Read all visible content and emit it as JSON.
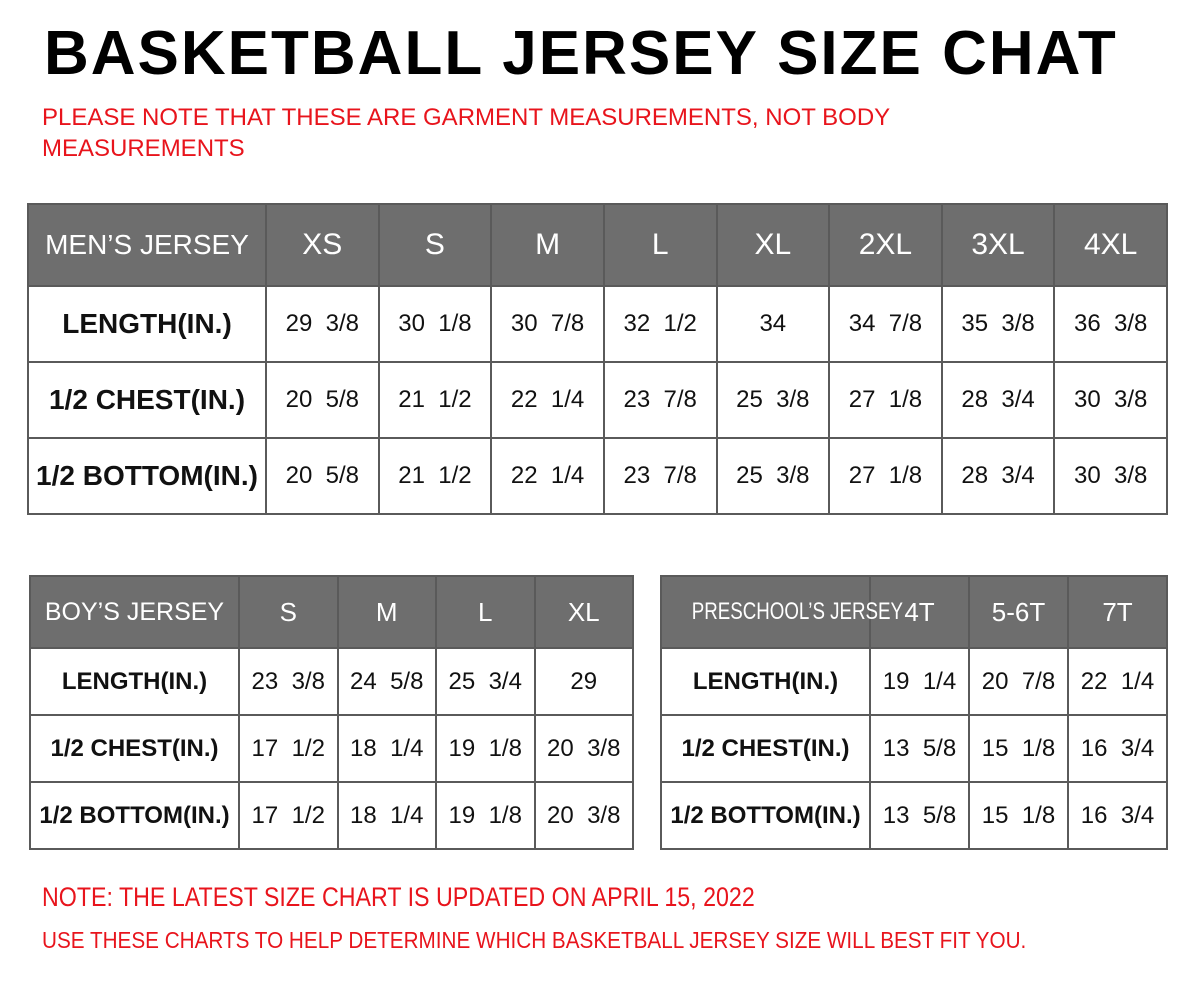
{
  "title": "BASKETBALL JERSEY SIZE CHAT",
  "notice_line1": "PLEASE NOTE THAT THESE ARE GARMENT MEASUREMENTS, NOT BODY",
  "notice_line2": "MEASUREMENTS",
  "footer_note1": "NOTE: THE LATEST SIZE CHART IS UPDATED ON APRIL 15, 2022",
  "footer_note2": "USE THESE CHARTS TO HELP DETERMINE WHICH  BASKETBALL JERSEY  SIZE WILL BEST FIT YOU.",
  "colors": {
    "header_bg": "#6e6e6e",
    "note_red": "#e8141c"
  },
  "tables": {
    "men": {
      "header": [
        "MEN’S JERSEY",
        "XS",
        "S",
        "M",
        "L",
        "XL",
        "2XL",
        "3XL",
        "4XL"
      ],
      "rows": [
        {
          "label": "LENGTH(IN.)",
          "values": [
            "29  3/8",
            "30  1/8",
            "30  7/8",
            "32  1/2",
            "34",
            "34  7/8",
            "35  3/8",
            "36  3/8"
          ]
        },
        {
          "label": "1/2  CHEST(IN.)",
          "values": [
            "20  5/8",
            "21  1/2",
            "22  1/4",
            "23  7/8",
            "25  3/8",
            "27  1/8",
            "28  3/4",
            "30  3/8"
          ]
        },
        {
          "label": "1/2  BOTTOM(IN.)",
          "values": [
            "20  5/8",
            "21  1/2",
            "22  1/4",
            "23  7/8",
            "25  3/8",
            "27  1/8",
            "28  3/4",
            "30  3/8"
          ]
        }
      ]
    },
    "boy": {
      "header": [
        "BOY’S JERSEY",
        "S",
        "M",
        "L",
        "XL"
      ],
      "rows": [
        {
          "label": "LENGTH(IN.)",
          "values": [
            "23  3/8",
            "24  5/8",
            "25  3/4",
            "29"
          ]
        },
        {
          "label": "1/2  CHEST(IN.)",
          "values": [
            "17  1/2",
            "18  1/4",
            "19  1/8",
            "20  3/8"
          ]
        },
        {
          "label": "1/2  BOTTOM(IN.)",
          "values": [
            "17  1/2",
            "18  1/4",
            "19  1/8",
            "20  3/8"
          ]
        }
      ]
    },
    "pre": {
      "header": [
        "PRESCHOOL’S JERSEY",
        "4T",
        "5-6T",
        "7T"
      ],
      "rows": [
        {
          "label": "LENGTH(IN.)",
          "values": [
            "19  1/4",
            "20  7/8",
            "22  1/4"
          ]
        },
        {
          "label": "1/2  CHEST(IN.)",
          "values": [
            "13  5/8",
            "15  1/8",
            "16  3/4"
          ]
        },
        {
          "label": "1/2  BOTTOM(IN.)",
          "values": [
            "13  5/8",
            "15  1/8",
            "16  3/4"
          ]
        }
      ]
    }
  }
}
